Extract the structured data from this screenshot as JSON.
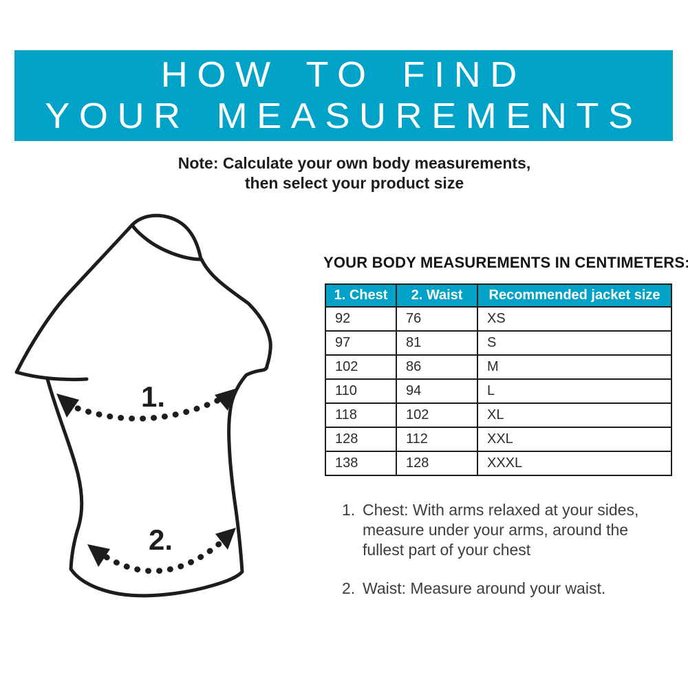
{
  "banner": {
    "line1": "HOW TO FIND",
    "line2": "YOUR MEASUREMENTS",
    "bg_color": "#00a2c8",
    "text_color": "#ffffff"
  },
  "note": {
    "line1": "Note: Calculate your own body measurements,",
    "line2": "then select your product size"
  },
  "diagram": {
    "chest_label": "1.",
    "waist_label": "2.",
    "line_color": "#1d1d1b"
  },
  "measurements": {
    "title": "YOUR BODY MEASUREMENTS IN CENTIMETERS:",
    "table": {
      "header_bg": "#00a2c8",
      "headers": [
        "1. Chest",
        "2. Waist",
        "Recommended jacket size"
      ],
      "rows": [
        [
          "92",
          "76",
          "XS"
        ],
        [
          "97",
          "81",
          "S"
        ],
        [
          "102",
          "86",
          "M"
        ],
        [
          "110",
          "94",
          "L"
        ],
        [
          "118",
          "102",
          "XL"
        ],
        [
          "128",
          "112",
          "XXL"
        ],
        [
          "138",
          "128",
          "XXXL"
        ]
      ]
    }
  },
  "instructions": {
    "items": [
      {
        "number": "1.",
        "text": "Chest: With arms relaxed at your sides, measure under your arms, around the fullest part of your chest"
      },
      {
        "number": "2.",
        "text": "Waist: Measure around your waist."
      }
    ]
  }
}
